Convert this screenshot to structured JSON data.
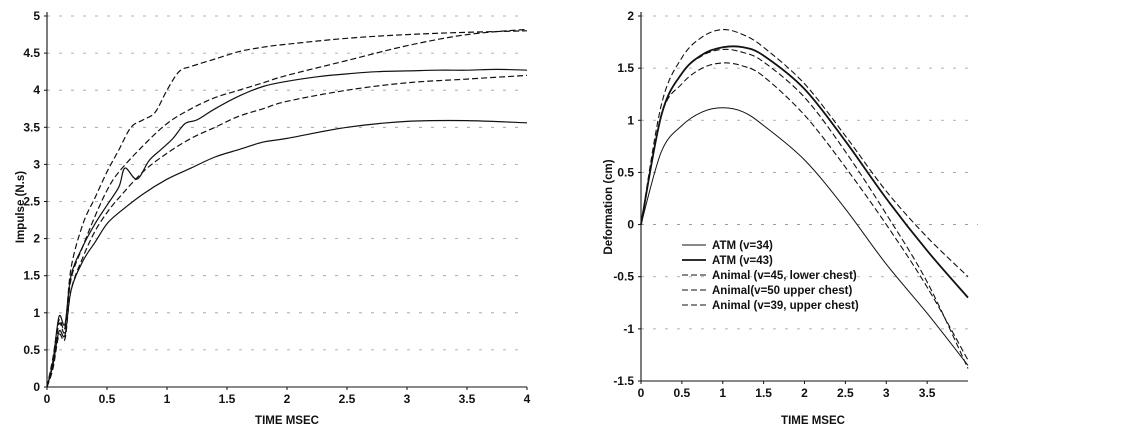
{
  "chart_data": [
    {
      "type": "line",
      "title": "",
      "xlabel": "TIME MSEC",
      "ylabel": "Impulse (N.s)",
      "xlim": [
        0,
        4
      ],
      "ylim": [
        0,
        5
      ],
      "xticks": [
        "0",
        "0.5",
        "1",
        "1.5",
        "2",
        "2.5",
        "3",
        "3.5",
        "4"
      ],
      "yticks": [
        "0",
        "0.5",
        "1",
        "1.5",
        "2",
        "2.5",
        "3",
        "3.5",
        "4",
        "4.5",
        "5"
      ],
      "grid": "dashed horizontal",
      "series": [
        {
          "style": "dashed",
          "color": "#111111",
          "x": [
            0,
            0.05,
            0.1,
            0.15,
            0.2,
            0.3,
            0.4,
            0.5,
            0.6,
            0.7,
            0.8,
            0.9,
            1.0,
            1.1,
            1.2,
            1.4,
            1.6,
            1.8,
            2.0,
            2.5,
            3.0,
            3.5,
            4.0
          ],
          "y": [
            0,
            0.4,
            0.9,
            0.8,
            1.6,
            2.2,
            2.55,
            2.9,
            3.2,
            3.5,
            3.6,
            3.7,
            4.0,
            4.25,
            4.32,
            4.42,
            4.52,
            4.58,
            4.62,
            4.7,
            4.75,
            4.78,
            4.8
          ]
        },
        {
          "style": "solid",
          "color": "#111111",
          "x": [
            0,
            0.05,
            0.1,
            0.15,
            0.2,
            0.3,
            0.4,
            0.5,
            0.6,
            0.65,
            0.75,
            0.85,
            0.95,
            1.05,
            1.15,
            1.25,
            1.4,
            1.6,
            1.8,
            2.0,
            2.25,
            2.5,
            2.75,
            3.0,
            3.25,
            3.5,
            3.75,
            4.0
          ],
          "y": [
            0,
            0.35,
            0.95,
            0.85,
            1.5,
            1.9,
            2.2,
            2.45,
            2.7,
            2.95,
            2.8,
            3.05,
            3.2,
            3.35,
            3.55,
            3.6,
            3.75,
            3.92,
            4.05,
            4.12,
            4.18,
            4.22,
            4.25,
            4.26,
            4.27,
            4.27,
            4.28,
            4.27
          ]
        },
        {
          "style": "dashed",
          "color": "#111111",
          "x": [
            0,
            0.05,
            0.1,
            0.15,
            0.2,
            0.3,
            0.4,
            0.5,
            0.6,
            0.8,
            1.0,
            1.2,
            1.4,
            1.6,
            1.8,
            2.0,
            2.5,
            3.0,
            3.5,
            4.0
          ],
          "y": [
            0,
            0.3,
            0.85,
            0.75,
            1.45,
            1.9,
            2.3,
            2.65,
            2.9,
            3.25,
            3.55,
            3.75,
            3.9,
            4.0,
            4.1,
            4.2,
            4.4,
            4.6,
            4.75,
            4.82
          ]
        },
        {
          "style": "dashed",
          "color": "#111111",
          "x": [
            0,
            0.05,
            0.1,
            0.15,
            0.2,
            0.3,
            0.4,
            0.5,
            0.6,
            0.8,
            1.0,
            1.2,
            1.4,
            1.6,
            1.8,
            2.0,
            2.5,
            3.0,
            3.5,
            4.0
          ],
          "y": [
            0,
            0.25,
            0.7,
            0.65,
            1.3,
            1.75,
            2.1,
            2.35,
            2.55,
            2.9,
            3.15,
            3.35,
            3.5,
            3.65,
            3.75,
            3.85,
            4.0,
            4.1,
            4.15,
            4.2
          ]
        },
        {
          "style": "solid",
          "color": "#111111",
          "x": [
            0,
            0.05,
            0.1,
            0.15,
            0.2,
            0.3,
            0.4,
            0.5,
            0.6,
            0.8,
            1.0,
            1.2,
            1.4,
            1.6,
            1.8,
            2.0,
            2.5,
            3.0,
            3.5,
            4.0
          ],
          "y": [
            0,
            0.3,
            0.75,
            0.7,
            1.3,
            1.7,
            1.95,
            2.2,
            2.35,
            2.6,
            2.8,
            2.95,
            3.1,
            3.2,
            3.3,
            3.35,
            3.5,
            3.58,
            3.59,
            3.56
          ]
        }
      ]
    },
    {
      "type": "line",
      "title": "",
      "xlabel": "TIME MSEC",
      "ylabel": "Deformation (cm)",
      "xlim": [
        0,
        4
      ],
      "ylim": [
        -1.5,
        2
      ],
      "xticks": [
        "0",
        "0.5",
        "1",
        "1.5",
        "2",
        "2.5",
        "3",
        "3.5"
      ],
      "yticks": [
        "-1.5",
        "-1",
        "-0.5",
        "0",
        "0.5",
        "1",
        "1.5",
        "2"
      ],
      "grid": "dashed horizontal",
      "legend_position": "lower-left",
      "series": [
        {
          "name": "ATM (v=34)",
          "style": "solid",
          "width": 1,
          "color": "#111111",
          "x": [
            0,
            0.25,
            0.5,
            0.75,
            1.0,
            1.25,
            1.5,
            2.0,
            2.5,
            3.0,
            3.5,
            4.0
          ],
          "y": [
            0,
            0.7,
            0.95,
            1.08,
            1.12,
            1.08,
            0.95,
            0.62,
            0.15,
            -0.38,
            -0.85,
            -1.35
          ]
        },
        {
          "name": "ATM (v=43)",
          "style": "solid",
          "width": 1.8,
          "color": "#111111",
          "x": [
            0,
            0.25,
            0.5,
            0.75,
            1.0,
            1.25,
            1.5,
            2.0,
            2.5,
            3.0,
            3.5,
            4.0
          ],
          "y": [
            0,
            1.05,
            1.45,
            1.63,
            1.7,
            1.7,
            1.62,
            1.3,
            0.8,
            0.25,
            -0.25,
            -0.7
          ]
        },
        {
          "name": "Animal (v=45, lower chest)",
          "style": "dashed",
          "width": 1.1,
          "color": "#111111",
          "x": [
            0,
            0.25,
            0.5,
            0.75,
            1.0,
            1.25,
            1.5,
            2.0,
            2.5,
            3.0,
            3.5,
            4.0
          ],
          "y": [
            0,
            1.05,
            1.35,
            1.5,
            1.55,
            1.52,
            1.42,
            1.05,
            0.55,
            0.0,
            -0.6,
            -1.3
          ]
        },
        {
          "name": "Animal(v=50 upper chest)",
          "style": "dashed",
          "width": 1.1,
          "color": "#111111",
          "x": [
            0,
            0.25,
            0.5,
            0.75,
            1.0,
            1.25,
            1.5,
            2.0,
            2.5,
            3.0,
            3.5,
            4.0
          ],
          "y": [
            0,
            1.05,
            1.45,
            1.62,
            1.68,
            1.65,
            1.56,
            1.22,
            0.7,
            0.1,
            -0.55,
            -1.38
          ]
        },
        {
          "name": "Animal (v=39, upper chest)",
          "style": "dashed",
          "width": 1.1,
          "color": "#111111",
          "x": [
            0,
            0.25,
            0.5,
            0.75,
            1.0,
            1.25,
            1.5,
            2.0,
            2.5,
            3.0,
            3.5,
            4.0
          ],
          "y": [
            0,
            1.15,
            1.6,
            1.8,
            1.87,
            1.82,
            1.7,
            1.35,
            0.85,
            0.32,
            -0.12,
            -0.5
          ]
        }
      ]
    }
  ]
}
